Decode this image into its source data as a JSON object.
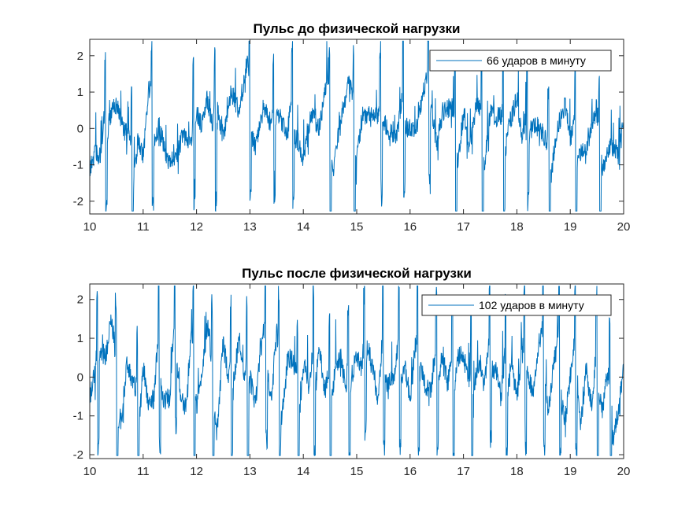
{
  "chart_data": [
    {
      "type": "line",
      "title": "Пульс до физической нагрузки",
      "xlabel": "",
      "ylabel": "",
      "xlim": [
        10,
        20
      ],
      "ylim": [
        -2.35,
        2.45
      ],
      "xticks": [
        10,
        11,
        12,
        13,
        14,
        15,
        16,
        17,
        18,
        19,
        20
      ],
      "yticks": [
        -2,
        -1,
        0,
        1,
        2
      ],
      "grid": false,
      "legend_position": "top-right",
      "series": [
        {
          "name": "66 ударов в минуту",
          "color": "#0072BD",
          "beat_times": [
            10.3,
            10.79,
            11.17,
            11.95,
            12.35,
            13.0,
            13.45,
            13.8,
            14.5,
            14.95,
            15.45,
            15.88,
            16.35,
            16.85,
            17.35,
            17.75,
            18.2,
            18.6,
            19.1,
            19.55
          ],
          "x": [
            10.0,
            10.1,
            10.2,
            10.3,
            10.35,
            10.45,
            10.55,
            10.65,
            10.75,
            10.8,
            10.9,
            11.0,
            11.1,
            11.2,
            11.3,
            11.45,
            11.6,
            11.75,
            11.9,
            12.0,
            12.1,
            12.2,
            12.3,
            12.4,
            12.5,
            12.65,
            12.8,
            12.95,
            13.0,
            13.1,
            13.25,
            13.4,
            13.5,
            13.6,
            13.7,
            13.8,
            13.9,
            14.0,
            14.15,
            14.3,
            14.45,
            14.55,
            14.7,
            14.85,
            15.0,
            15.1,
            15.25,
            15.4,
            15.5,
            15.6,
            15.75,
            15.9,
            16.0,
            16.1,
            16.25,
            16.4,
            16.5,
            16.6,
            16.75,
            16.9,
            17.0,
            17.1,
            17.25,
            17.4,
            17.5,
            17.6,
            17.75,
            17.85,
            18.0,
            18.1,
            18.25,
            18.4,
            18.5,
            18.6,
            18.75,
            18.9,
            19.0,
            19.15,
            19.3,
            19.45,
            19.6,
            19.75,
            19.9,
            20.0
          ],
          "y": [
            -1.7,
            -1.4,
            -2.2,
            0.3,
            1.2,
            1.8,
            0.8,
            -0.7,
            -1.4,
            -2.1,
            -0.2,
            -1.5,
            1.1,
            0.4,
            1.0,
            -1.2,
            -1.7,
            -0.9,
            -1.9,
            1.8,
            0.5,
            1.2,
            -0.8,
            1.6,
            0.3,
            1.9,
            0.4,
            2.4,
            1.2,
            -0.3,
            0.9,
            -0.8,
            1.9,
            0.5,
            -0.9,
            0.8,
            0.3,
            -1.1,
            0.6,
            -0.5,
            1.5,
            -1.3,
            0.6,
            1.7,
            -0.7,
            1.2,
            0.5,
            -0.4,
            1.4,
            0.2,
            -0.9,
            1.3,
            0.6,
            -0.2,
            1.1,
            2.0,
            -0.4,
            0.8,
            0.3,
            -0.6,
            1.3,
            -1.1,
            0.5,
            -0.7,
            1.2,
            0.2,
            -0.5,
            0.8,
            1.4,
            -1.3,
            0.9,
            0.2,
            -1.0,
            -2.0,
            0.5,
            0.9,
            -1.3,
            -0.3,
            -0.8,
            -0.2,
            -0.9,
            -0.4,
            -1.5,
            -0.2
          ]
        }
      ]
    },
    {
      "type": "line",
      "title": "Пульс после физической нагрузки",
      "xlabel": "",
      "ylabel": "",
      "xlim": [
        10,
        20
      ],
      "ylim": [
        -2.1,
        2.4
      ],
      "xticks": [
        10,
        11,
        12,
        13,
        14,
        15,
        16,
        17,
        18,
        19,
        20
      ],
      "yticks": [
        -2,
        -1,
        0,
        1,
        2
      ],
      "grid": false,
      "legend_position": "top-right",
      "series": [
        {
          "name": "102 ударов в минуту",
          "color": "#0072BD",
          "beat_times": [
            10.15,
            10.5,
            10.9,
            11.3,
            11.6,
            11.95,
            12.3,
            12.65,
            12.95,
            13.3,
            13.55,
            13.9,
            14.2,
            14.5,
            14.85,
            15.15,
            15.5,
            15.8,
            16.15,
            16.5,
            16.8,
            17.15,
            17.5,
            17.8,
            18.15,
            18.5,
            18.8,
            19.1,
            19.5,
            19.75
          ],
          "x": [
            10.0,
            10.1,
            10.2,
            10.3,
            10.4,
            10.5,
            10.6,
            10.7,
            10.8,
            10.9,
            11.0,
            11.1,
            11.2,
            11.3,
            11.4,
            11.5,
            11.6,
            11.7,
            11.8,
            11.9,
            12.0,
            12.1,
            12.2,
            12.3,
            12.4,
            12.5,
            12.6,
            12.7,
            12.8,
            12.9,
            13.0,
            13.1,
            13.2,
            13.3,
            13.4,
            13.5,
            13.6,
            13.7,
            13.8,
            13.9,
            14.0,
            14.1,
            14.2,
            14.3,
            14.4,
            14.5,
            14.6,
            14.7,
            14.8,
            14.9,
            15.0,
            15.1,
            15.2,
            15.3,
            15.4,
            15.5,
            15.6,
            15.7,
            15.8,
            15.9,
            16.0,
            16.1,
            16.2,
            16.3,
            16.4,
            16.5,
            16.6,
            16.7,
            16.8,
            16.9,
            17.0,
            17.1,
            17.2,
            17.3,
            17.4,
            17.5,
            17.6,
            17.7,
            17.8,
            17.9,
            18.0,
            18.1,
            18.2,
            18.3,
            18.4,
            18.5,
            18.6,
            18.7,
            18.8,
            18.9,
            19.0,
            19.1,
            19.2,
            19.3,
            19.4,
            19.5,
            19.6,
            19.7,
            19.8,
            19.9,
            20.0
          ],
          "y": [
            -1.2,
            -0.6,
            2.1,
            1.2,
            2.3,
            -0.5,
            -1.4,
            0.7,
            -1.0,
            -1.8,
            1.1,
            -1.2,
            -1.6,
            1.4,
            -0.8,
            -1.3,
            2.2,
            -0.3,
            -1.6,
            1.1,
            -0.4,
            0.2,
            1.9,
            -0.7,
            -1.4,
            1.6,
            -1.0,
            0.8,
            1.9,
            -0.9,
            1.0,
            -1.2,
            0.7,
            1.6,
            -0.6,
            1.3,
            -1.1,
            1.0,
            0.3,
            -1.4,
            1.2,
            -0.8,
            0.3,
            1.8,
            -1.0,
            -0.6,
            1.1,
            0.7,
            -1.4,
            0.8,
            1.0,
            -0.4,
            2.4,
            0.5,
            -1.7,
            1.4,
            0.2,
            -0.6,
            0.9,
            1.2,
            -1.3,
            0.6,
            1.4,
            -0.4,
            -1.0,
            0.5,
            1.6,
            -0.8,
            0.1,
            1.5,
            0.8,
            -1.1,
            0.4,
            1.0,
            -0.9,
            1.4,
            0.9,
            -1.4,
            0.5,
            1.2,
            -1.1,
            0.3,
            1.1,
            -0.6,
            0.9,
            1.3,
            -1.0,
            0.5,
            0.8,
            -1.7,
            -0.4,
            1.0,
            -1.5,
            0.3,
            -2.1,
            0.4,
            -1.2,
            -0.6,
            -2.0,
            -1.1,
            0.2
          ]
        }
      ]
    }
  ]
}
